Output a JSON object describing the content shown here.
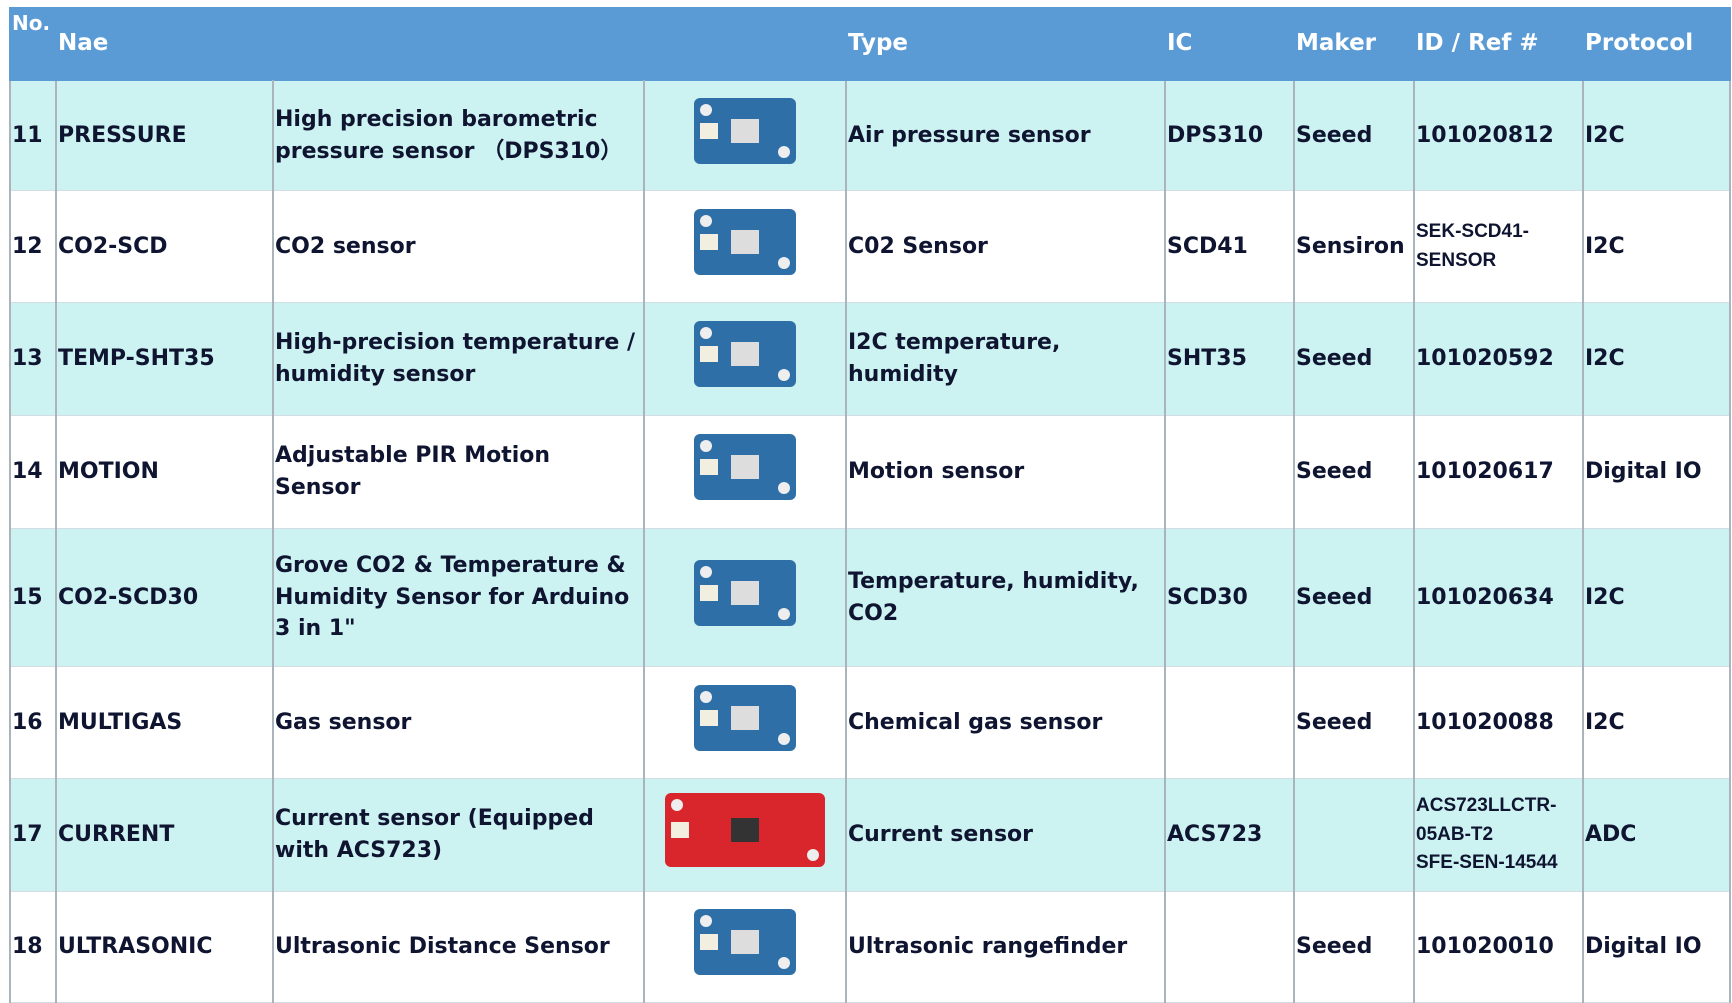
{
  "table": {
    "header": {
      "no": "No.",
      "name": "Nae",
      "type": "Type",
      "ic": "IC",
      "maker": "Maker",
      "id": "ID / Ref #",
      "protocol": "Protocol"
    },
    "rows": [
      {
        "no": 11,
        "name": "PRESSURE",
        "description": "High precision barometric pressure sensor （DPS310）",
        "type": "Air pressure sensor",
        "ic": "DPS310",
        "maker": "Seeed",
        "id": "101020812",
        "protocol": "I2C"
      },
      {
        "no": 12,
        "name": "CO2-SCD",
        "description": "CO2 sensor",
        "type": "C02 Sensor",
        "ic": "SCD41",
        "maker": "Sensiron",
        "id": "SEK-SCD41-SENSOR",
        "protocol": "I2C"
      },
      {
        "no": 13,
        "name": "TEMP-SHT35",
        "description": "High-precision temperature / humidity sensor",
        "type": "I2C temperature, humidity",
        "ic": "SHT35",
        "maker": "Seeed",
        "id": "101020592",
        "protocol": "I2C"
      },
      {
        "no": 14,
        "name": "MOTION",
        "description": "Adjustable PIR Motion Sensor",
        "type": "Motion sensor",
        "maker": "Seeed",
        "id": "101020617",
        "protocol": "Digital IO"
      },
      {
        "no": 15,
        "name": "CO2-SCD30",
        "description": "Grove CO2 & Temperature & Humidity Sensor for Arduino 3 in 1\"",
        "type": "Temperature, humidity, CO2",
        "ic": "SCD30",
        "maker": "Seeed",
        "id": "101020634",
        "protocol": "I2C"
      },
      {
        "no": 16,
        "name": "MULTIGAS",
        "description": "Gas sensor",
        "type": "Chemical gas sensor",
        "maker": "Seeed",
        "id": "101020088",
        "protocol": "I2C"
      },
      {
        "no": 17,
        "name": "CURRENT",
        "description": "Current sensor (Equipped with ACS723)",
        "type": "Current sensor",
        "ic": "ACS723",
        "id": "ACS723LLCTR-05AB-T2",
        "id2": "SFE-SEN-14544",
        "protocol": "ADC"
      },
      {
        "no": 18,
        "name": "ULTRASONIC",
        "description": "Ultrasonic Distance Sensor",
        "type": "Ultrasonic rangefinder",
        "maker": "Seeed",
        "id": "101020010",
        "protocol": "Digital IO"
      }
    ]
  }
}
